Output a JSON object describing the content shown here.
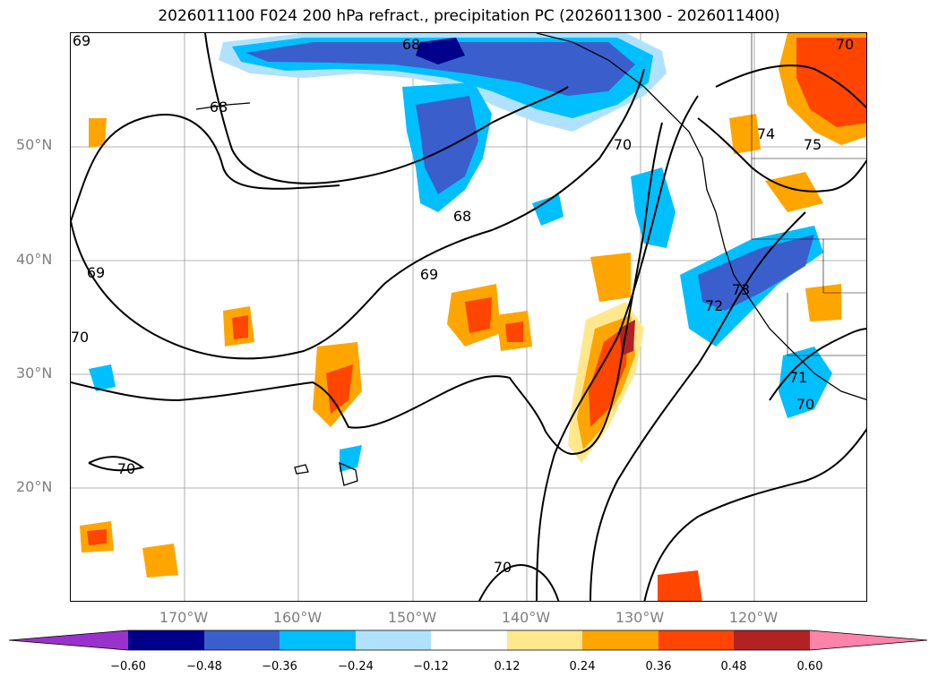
{
  "title": "2026011100 F024 200 hPa refract., precipitation PC (2026011300 - 2026011400)",
  "latitude_labels": [
    "50°N",
    "40°N",
    "30°N",
    "20°N"
  ],
  "longitude_labels": [
    "170°W",
    "160°W",
    "150°W",
    "140°W",
    "130°W",
    "120°W"
  ],
  "contour_labels": [
    "69",
    "68",
    "68",
    "68",
    "69",
    "69",
    "70",
    "70",
    "70",
    "70",
    "72",
    "73",
    "74",
    "75",
    "71",
    "70",
    "70"
  ],
  "colorbar": {
    "ticks": [
      "−0.60",
      "−0.48",
      "−0.36",
      "−0.24",
      "−0.12",
      "0.12",
      "0.24",
      "0.36",
      "0.48",
      "0.60"
    ],
    "colors": [
      "#9932cc",
      "#00008b",
      "#3a5fcd",
      "#00bfff",
      "#b0e2ff",
      "#ffffff",
      "#ffe88c",
      "#ffa500",
      "#ff4500",
      "#b22222",
      "#ff82ab"
    ]
  }
}
